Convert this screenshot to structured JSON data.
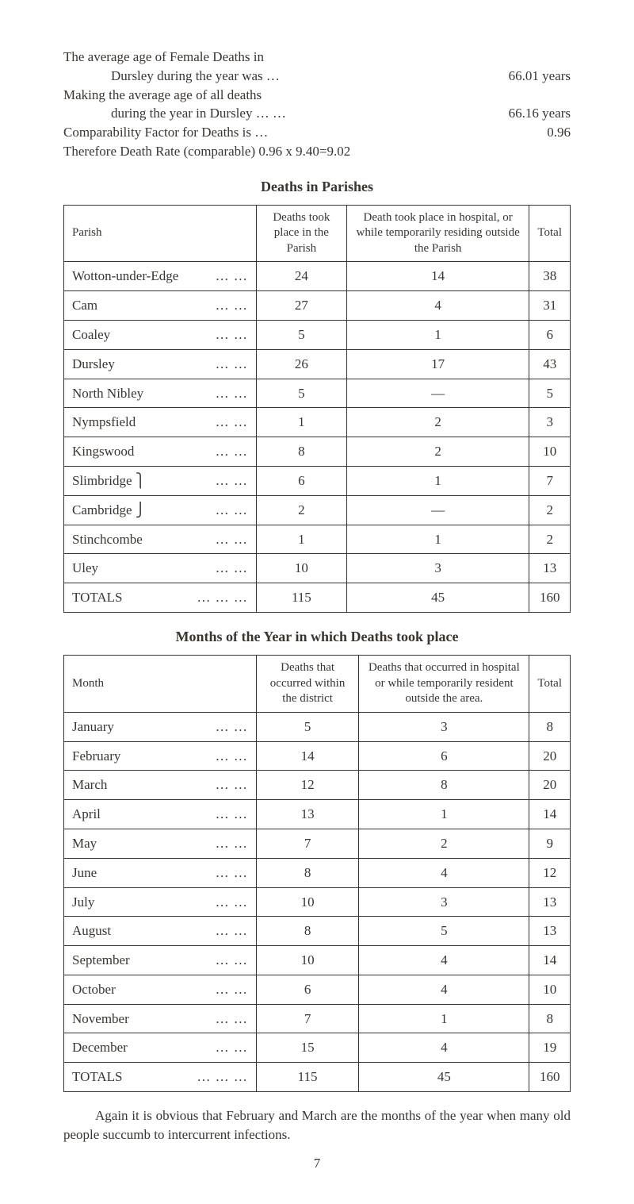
{
  "intro": {
    "line1": "The average age of Female Deaths in",
    "line2_left": "Dursley during the year was",
    "line2_right": "66.01 years",
    "line3": "Making the average age of all deaths",
    "line4_left": "during the year in Dursley …",
    "line4_right": "66.16 years",
    "line5_left": "Comparability Factor for Deaths is",
    "line5_right": "0.96",
    "line6": "Therefore Death Rate (comparable) 0.96 x 9.40=9.02"
  },
  "table1": {
    "title": "Deaths in Parishes",
    "headers": {
      "col1": "Parish",
      "col2": "Deaths took place in the Parish",
      "col3": "Death took place in hospital, or while temporarily residing outside the Parish",
      "col4": "Total"
    },
    "rows": [
      {
        "name": "Wotton-under-Edge",
        "c2": "24",
        "c3": "14",
        "c4": "38"
      },
      {
        "name": "Cam",
        "c2": "27",
        "c3": "4",
        "c4": "31"
      },
      {
        "name": "Coaley",
        "c2": "5",
        "c3": "1",
        "c4": "6"
      },
      {
        "name": "Dursley",
        "c2": "26",
        "c3": "17",
        "c4": "43"
      },
      {
        "name": "North Nibley",
        "c2": "5",
        "c3": "—",
        "c4": "5"
      },
      {
        "name": "Nympsfield",
        "c2": "1",
        "c3": "2",
        "c4": "3"
      },
      {
        "name": "Kingswood",
        "c2": "8",
        "c3": "2",
        "c4": "10"
      },
      {
        "name": "Slimbridge ⎫",
        "c2": "6",
        "c3": "1",
        "c4": "7"
      },
      {
        "name": "Cambridge ⎭",
        "c2": "2",
        "c3": "—",
        "c4": "2"
      },
      {
        "name": "Stinchcombe",
        "c2": "1",
        "c3": "1",
        "c4": "2"
      },
      {
        "name": "Uley",
        "c2": "10",
        "c3": "3",
        "c4": "13"
      }
    ],
    "totals": {
      "name": "TOTALS",
      "c2": "115",
      "c3": "45",
      "c4": "160"
    }
  },
  "table2": {
    "title": "Months of the Year in which Deaths took place",
    "headers": {
      "col1": "Month",
      "col2": "Deaths that occurred within the district",
      "col3": "Deaths that occurred in hospital or while temporarily resident outside the area.",
      "col4": "Total"
    },
    "rows": [
      {
        "name": "January",
        "c2": "5",
        "c3": "3",
        "c4": "8"
      },
      {
        "name": "February",
        "c2": "14",
        "c3": "6",
        "c4": "20"
      },
      {
        "name": "March",
        "c2": "12",
        "c3": "8",
        "c4": "20"
      },
      {
        "name": "April",
        "c2": "13",
        "c3": "1",
        "c4": "14"
      },
      {
        "name": "May",
        "c2": "7",
        "c3": "2",
        "c4": "9"
      },
      {
        "name": "June",
        "c2": "8",
        "c3": "4",
        "c4": "12"
      },
      {
        "name": "July",
        "c2": "10",
        "c3": "3",
        "c4": "13"
      },
      {
        "name": "August",
        "c2": "8",
        "c3": "5",
        "c4": "13"
      },
      {
        "name": "September",
        "c2": "10",
        "c3": "4",
        "c4": "14"
      },
      {
        "name": "October",
        "c2": "6",
        "c3": "4",
        "c4": "10"
      },
      {
        "name": "November",
        "c2": "7",
        "c3": "1",
        "c4": "8"
      },
      {
        "name": "December",
        "c2": "15",
        "c3": "4",
        "c4": "19"
      }
    ],
    "totals": {
      "name": "TOTALS",
      "c2": "115",
      "c3": "45",
      "c4": "160"
    }
  },
  "closing": "Again it is obvious that February and March are the months of the year when many old people succumb to intercurrent infections.",
  "pageNum": "7"
}
